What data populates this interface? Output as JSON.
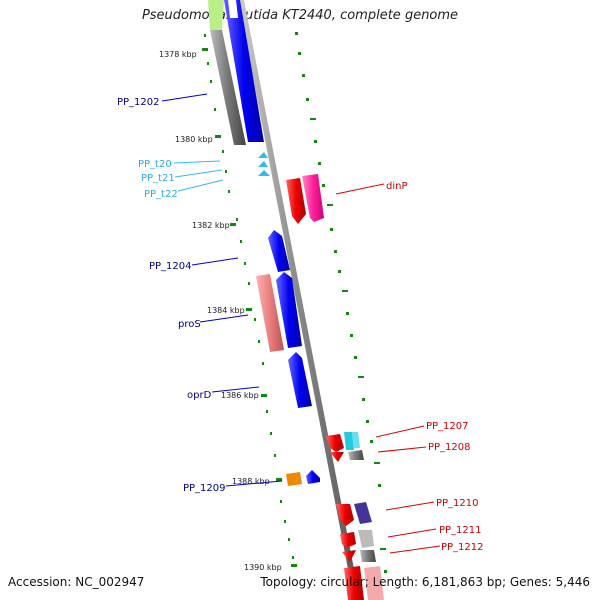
{
  "title": "Pseudomonas putida KT2440, complete genome",
  "footer": {
    "accession": "Accession: NC_002947",
    "summary": "Topology: circular; Length: 6,181,863 bp; Genes: 5,446"
  },
  "scale_labels": [
    "1378 kbp",
    "1380 kbp",
    "1382 kbp",
    "1384 kbp",
    "1386 kbp",
    "1388 kbp",
    "1390 kbp"
  ],
  "gene_labels": {
    "pp1202": "PP_1202",
    "ppt20": "PP_t20",
    "ppt21": "PP_t21",
    "ppt22": "PP_t22",
    "pp1204": "PP_1204",
    "pros": "proS",
    "oprd": "oprD",
    "pp1209": "PP_1209",
    "dinp": "dinP",
    "pp1207": "PP_1207",
    "pp1208": "PP_1208",
    "pp1210": "PP_1210",
    "pp1211": "PP_1211",
    "pp1212": "PP_1212"
  },
  "colors": {
    "backbone": "#8c8c8c",
    "forward_gene": "#0000ee",
    "forward_label": "#00008b",
    "trna": "#33bbee",
    "reverse_gene": "#ee0000",
    "reverse_label": "#cc0000",
    "dinp_fill": "#ff2299",
    "pros_fill": "#e88080",
    "grey_gene": "#666666",
    "cyan_gene": "#22ccdd",
    "purple_gene": "#443399",
    "orange_gene": "#ee8800",
    "lime_gene": "#bbee88",
    "scale_dots": "#118811"
  }
}
